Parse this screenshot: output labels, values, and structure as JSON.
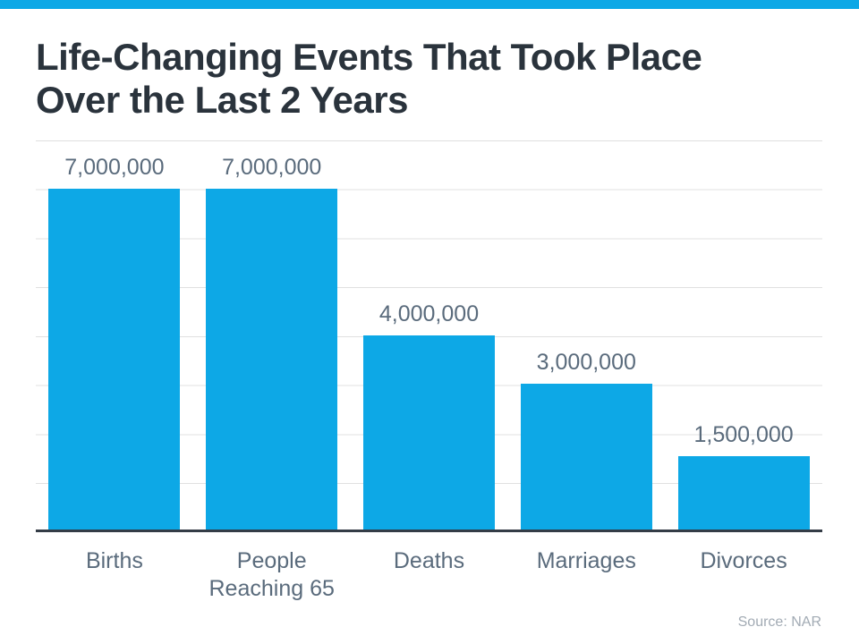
{
  "header": {
    "title_lines": [
      "Life-Changing Events That Took Place",
      "Over the Last 2 Years"
    ]
  },
  "colors": {
    "accent_blue": "#0da8e6",
    "bar_fill": "#0da8e6",
    "title_text": "#2a333c",
    "label_text": "#5a6b7c",
    "gridline": "#e0e0e0",
    "axis_line": "#343c46",
    "source_text": "#a2abb4"
  },
  "chart_data": {
    "type": "bar",
    "title": "Life-Changing Events That Took Place Over the Last 2 Years",
    "categories": [
      "Births",
      "People Reaching 65",
      "Deaths",
      "Marriages",
      "Divorces"
    ],
    "values": [
      7000000,
      7000000,
      4000000,
      3000000,
      1500000
    ],
    "value_labels": [
      "7,000,000",
      "7,000,000",
      "4,000,000",
      "3,000,000",
      "1,500,000"
    ],
    "xlabel": "",
    "ylabel": "",
    "ylim": [
      0,
      8000000
    ],
    "gridline_interval": 1000000,
    "grid": true,
    "legend": false,
    "source": "Source: NAR"
  }
}
